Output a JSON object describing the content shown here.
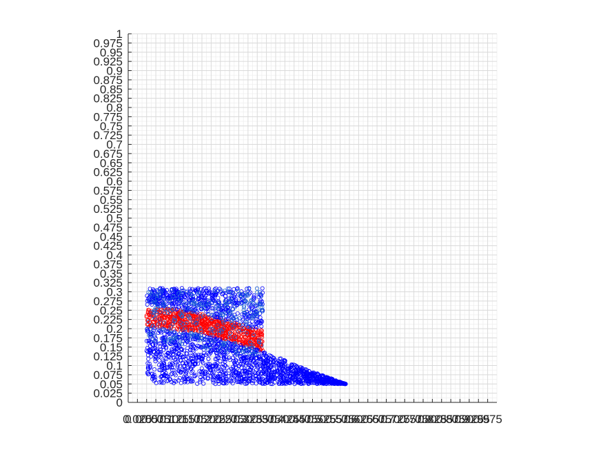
{
  "chart_data": {
    "type": "scatter",
    "title": "",
    "xlabel": "",
    "ylabel": "",
    "xlim": [
      0,
      1
    ],
    "ylim": [
      0,
      1
    ],
    "grid": true,
    "grid_minor": true,
    "x_ticks": [
      "0",
      "0.025",
      "0.05",
      "0.075",
      "0.1",
      "0.125",
      "0.15",
      "0.175",
      "0.2",
      "0.225",
      "0.25",
      "0.275",
      "0.3",
      "0.325",
      "0.35",
      "0.375",
      "0.4",
      "0.425",
      "0.45",
      "0.475",
      "0.5",
      "0.525",
      "0.55",
      "0.575",
      "0.6",
      "0.625",
      "0.65",
      "0.675",
      "0.7",
      "0.725",
      "0.75",
      "0.775",
      "0.8",
      "0.825",
      "0.85",
      "0.875",
      "0.9",
      "0.925",
      "0.95",
      "0.975"
    ],
    "y_ticks": [
      "0",
      "0.025",
      "0.05",
      "0.075",
      "0.1",
      "0.125",
      "0.15",
      "0.175",
      "0.2",
      "0.225",
      "0.25",
      "0.275",
      "0.3",
      "0.325",
      "0.35",
      "0.375",
      "0.4",
      "0.425",
      "0.45",
      "0.475",
      "0.5",
      "0.525",
      "0.55",
      "0.575",
      "0.6",
      "0.625",
      "0.65",
      "0.675",
      "0.7",
      "0.725",
      "0.75",
      "0.775",
      "0.8",
      "0.825",
      "0.85",
      "0.875",
      "0.9",
      "0.925",
      "0.95",
      "0.975",
      "1"
    ],
    "marker": "open-circle",
    "series": [
      {
        "color": "#ff0000",
        "region": "band between the upper and lower blue regions",
        "x_range": [
          0.05,
          0.365
        ],
        "y_upper": [
          [
            0.05,
            0.265
          ],
          [
            0.2,
            0.24
          ],
          [
            0.365,
            0.195
          ]
        ],
        "y_lower": [
          [
            0.05,
            0.205
          ],
          [
            0.2,
            0.19
          ],
          [
            0.365,
            0.14
          ]
        ]
      },
      {
        "color": "#0000ff",
        "region": "main cloud under the red band, tapering to the right",
        "x_range": [
          0.05,
          0.59
        ],
        "y_upper": [
          [
            0.05,
            0.205
          ],
          [
            0.2,
            0.185
          ],
          [
            0.365,
            0.14
          ],
          [
            0.47,
            0.095
          ],
          [
            0.59,
            0.05
          ]
        ],
        "y_lower": [
          [
            0.05,
            0.05
          ],
          [
            0.59,
            0.05
          ]
        ]
      },
      {
        "color": "#0000ff",
        "region": "upper block above the red band",
        "x_range": [
          0.05,
          0.365
        ],
        "y_upper": [
          [
            0.05,
            0.31
          ],
          [
            0.365,
            0.31
          ]
        ],
        "y_lower": [
          [
            0.05,
            0.265
          ],
          [
            0.2,
            0.24
          ],
          [
            0.365,
            0.195
          ]
        ]
      },
      {
        "color": "#1a5fd6",
        "region": "mixed blue-teal points in the upper block and along the top edge of the lower cloud",
        "x_range": [
          0.05,
          0.365
        ],
        "y_upper": [
          [
            0.05,
            0.31
          ],
          [
            0.365,
            0.31
          ]
        ],
        "y_lower": [
          [
            0.05,
            0.17
          ],
          [
            0.365,
            0.12
          ]
        ]
      }
    ]
  }
}
